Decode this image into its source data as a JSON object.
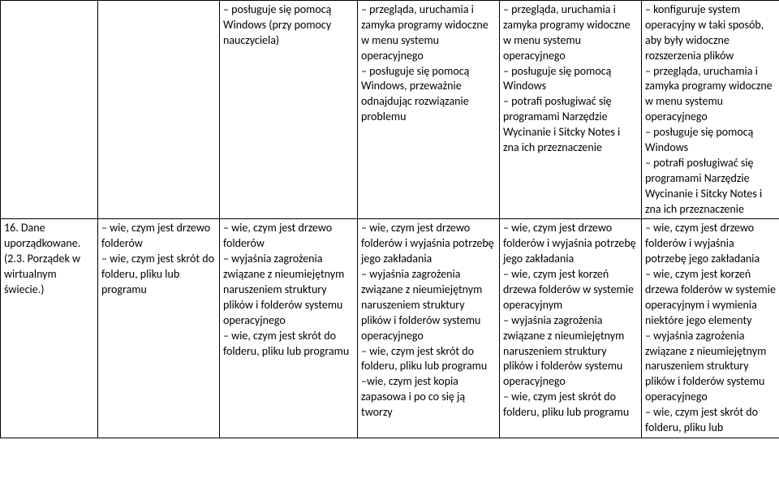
{
  "table": {
    "row1": {
      "c1": "",
      "c2": "",
      "c3": "– posługuje się pomocą Windows (przy pomocy nauczyciela)",
      "c4": "– przegląda, uruchamia i zamyka programy widoczne w menu systemu operacyjnego\n– posługuje się pomocą Windows, przeważnie odnajdując rozwiązanie problemu",
      "c5": "– przegląda, uruchamia i zamyka programy widoczne w menu systemu operacyjnego\n– posługuje się pomocą Windows\n– potrafi posługiwać się programami Narzędzie Wycinanie i Sitcky Notes i zna ich przeznaczenie",
      "c6": "– konfiguruje system operacyjny w taki sposób, aby były widoczne rozszerzenia plików\n– przegląda, uruchamia i zamyka programy widoczne w menu systemu operacyjnego\n– posługuje się pomocą Windows\n– potrafi posługiwać się programami Narzędzie Wycinanie i Sitcky Notes i zna ich przeznaczenie"
    },
    "row2": {
      "c1": "16. Dane uporządkowane.\n(2.3. Porządek w wirtualnym świecie.)",
      "c2": "– wie, czym jest drzewo folderów\n– wie, czym jest skrót do folderu, pliku lub programu",
      "c3": "– wie, czym jest drzewo folderów\n– wyjaśnia zagrożenia związane z nieumiejętnym naruszeniem struktury plików i folderów systemu operacyjnego\n– wie, czym jest skrót do folderu, pliku lub programu",
      "c4": "– wie, czym jest drzewo folderów i wyjaśnia potrzebę jego zakładania\n– wyjaśnia zagrożenia związane z nieumiejętnym naruszeniem struktury plików i folderów systemu operacyjnego\n– wie, czym jest skrót do folderu, pliku lub programu\n–wie, czym jest kopia zapasowa i po co się ją tworzy",
      "c5": "– wie, czym jest drzewo folderów i wyjaśnia potrzebę jego zakładania\n– wie, czym jest korzeń drzewa folderów w systemie operacyjnym\n– wyjaśnia zagrożenia związane z nieumiejętnym naruszeniem struktury plików i folderów systemu operacyjnego\n– wie, czym jest skrót do folderu, pliku lub programu",
      "c6": "– wie, czym jest drzewo folderów i wyjaśnia potrzebę jego zakładania\n– wie, czym jest korzeń drzewa folderów w systemie operacyjnym i wymienia niektóre jego elementy\n– wyjaśnia zagrożenia związane z nieumiejętnym naruszeniem struktury plików i folderów systemu operacyjnego\n– wie, czym jest skrót do folderu, pliku lub"
    }
  }
}
